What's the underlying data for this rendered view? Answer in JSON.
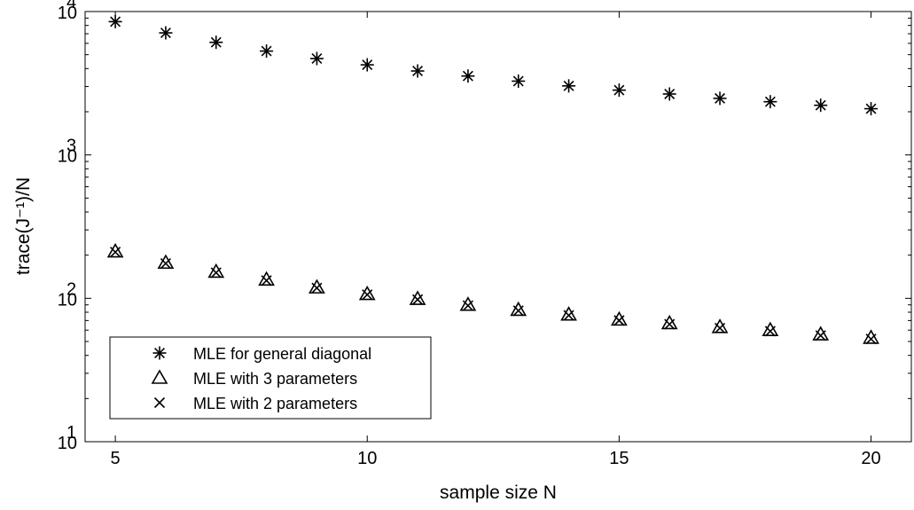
{
  "chart_data": {
    "type": "scatter",
    "title": "",
    "xlabel": "sample size N",
    "ylabel": "trace(J⁻¹)/N",
    "xlim": [
      4.4,
      20.8
    ],
    "ylim": [
      10,
      10000
    ],
    "yscale": "log",
    "xticks": [
      5,
      10,
      15,
      20
    ],
    "xtick_labels": [
      "5",
      "10",
      "15",
      "20"
    ],
    "yticks": [
      10,
      100,
      1000,
      10000
    ],
    "ytick_exponents": [
      "1",
      "2",
      "3",
      "4"
    ],
    "ytick_base": "10",
    "grid": false,
    "legend_position": "lower-left",
    "x": [
      5,
      6,
      7,
      8,
      9,
      10,
      11,
      12,
      13,
      14,
      15,
      16,
      17,
      18,
      19,
      20
    ],
    "series": [
      {
        "name": "MLE for general diagonal",
        "marker": "asterisk",
        "values": [
          8500,
          7100,
          6100,
          5300,
          4700,
          4250,
          3850,
          3550,
          3270,
          3030,
          2830,
          2660,
          2480,
          2350,
          2220,
          2100
        ]
      },
      {
        "name": "MLE with 3 parameters",
        "marker": "triangle",
        "values": [
          212,
          177,
          153,
          135,
          119,
          107,
          99,
          90,
          83,
          77,
          71,
          67,
          63,
          60,
          56,
          53
        ]
      },
      {
        "name": "MLE with 2 parameters",
        "marker": "x",
        "values": [
          210,
          175,
          151,
          133,
          118,
          106,
          98,
          89,
          82,
          76,
          70,
          66,
          62,
          59,
          55,
          52
        ]
      }
    ]
  }
}
